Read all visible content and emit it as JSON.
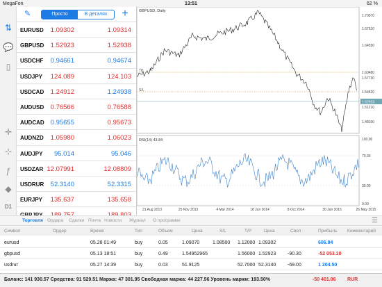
{
  "status": {
    "carrier": "MegaFon",
    "time": "13:51",
    "battery": "62 %"
  },
  "toolbar": {
    "simple": "Просто",
    "details": "В деталях"
  },
  "quotes": [
    {
      "symbol": "EURUSD",
      "bid": "1.09302",
      "ask": "1.09314",
      "bid_color": "red",
      "ask_color": "red"
    },
    {
      "symbol": "GBPUSD",
      "bid": "1.52923",
      "ask": "1.52938",
      "bid_color": "red",
      "ask_color": "red"
    },
    {
      "symbol": "USDCHF",
      "bid": "0.94661",
      "ask": "0.94674",
      "bid_color": "blue",
      "ask_color": "blue"
    },
    {
      "symbol": "USDJPY",
      "bid": "124.089",
      "ask": "124.103",
      "bid_color": "red",
      "ask_color": "red"
    },
    {
      "symbol": "USDCAD",
      "bid": "1.24912",
      "ask": "1.24938",
      "bid_color": "red",
      "ask_color": "blue"
    },
    {
      "symbol": "AUDUSD",
      "bid": "0.76566",
      "ask": "0.76588",
      "bid_color": "red",
      "ask_color": "red"
    },
    {
      "symbol": "AUDCAD",
      "bid": "0.95655",
      "ask": "0.95673",
      "bid_color": "blue",
      "ask_color": "red"
    },
    {
      "symbol": "AUDNZD",
      "bid": "1.05980",
      "ask": "1.06023",
      "bid_color": "red",
      "ask_color": "red"
    },
    {
      "symbol": "AUDJPY",
      "bid": "95.014",
      "ask": "95.046",
      "bid_color": "blue",
      "ask_color": "blue"
    },
    {
      "symbol": "USDZAR",
      "bid": "12.07991",
      "ask": "12.08809",
      "bid_color": "red",
      "ask_color": "red"
    },
    {
      "symbol": "USDRUR",
      "bid": "52.3140",
      "ask": "52.3315",
      "bid_color": "blue",
      "ask_color": "blue"
    },
    {
      "symbol": "EURJPY",
      "bid": "135.637",
      "ask": "135.658",
      "bid_color": "red",
      "ask_color": "red"
    },
    {
      "symbol": "GBPJPY",
      "bid": "189.757",
      "ask": "189.803",
      "bid_color": "red",
      "ask_color": "red"
    }
  ],
  "chart": {
    "title": "GBPUSD, Daily",
    "price_ticks": [
      "1.70570",
      "1.67510",
      "1.64550",
      "1.60480",
      "1.57730",
      "1.54520",
      "1.51210",
      "1.48100"
    ],
    "current_price": "1.52923",
    "line_labels": [
      "TP",
      "S/L"
    ],
    "rsi_label": "RSI(14) 43.84",
    "rsi_ticks": [
      "100.00",
      "70.00",
      "30.00",
      "0.00"
    ],
    "dates": [
      "21 Aug 2013",
      "25 Nov 2013",
      "4 Mar 2014",
      "18 Jun 2014",
      "8 Oct 2014",
      "30 Jan 2015",
      "26 May 2015"
    ]
  },
  "tabs": [
    "Торговля",
    "Ордера",
    "Сделки",
    "Почта",
    "Новости",
    "Журнал",
    "О программе"
  ],
  "table_headers": [
    "Символ",
    "Ордер",
    "Время",
    "Тип",
    "Объем",
    "Цена",
    "S/L",
    "T/P",
    "Цена",
    "Своп",
    "Прибыль",
    "Комментарий"
  ],
  "trades": [
    {
      "symbol": "eurusd",
      "time": "05.28 01:49",
      "type": "buy",
      "volume": "0.05",
      "price": "1.09070",
      "sl": "1.08500",
      "tp": "1.12000",
      "cur": "1.09302",
      "swap": "",
      "profit": "606.84",
      "profit_color": "blue"
    },
    {
      "symbol": "gbpusd",
      "time": "05.13 18:51",
      "type": "buy",
      "volume": "0.49",
      "price": "1.54952965",
      "sl": "",
      "tp": "1.56000",
      "cur": "1.52923",
      "swap": "-90.30",
      "profit": "-52 053.10",
      "profit_color": "red"
    },
    {
      "symbol": "usdrur",
      "time": "05.27 14:39",
      "type": "buy",
      "volume": "0.03",
      "price": "51.9125",
      "sl": "",
      "tp": "52.7000",
      "cur": "52.3140",
      "swap": "-69.00",
      "profit": "1 204.50",
      "profit_color": "blue"
    }
  ],
  "balance": {
    "text": "Баланс: 141 930.57 Средства: 91 529.51 Маржа: 47 301.95 Свободная маржа: 44 227.56 Уровень маржи: 193.50%",
    "profit": "-50 401.06",
    "currency": "RUR"
  }
}
